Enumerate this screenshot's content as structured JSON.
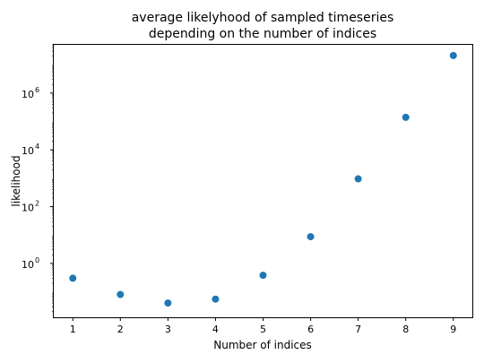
{
  "chart_data": {
    "type": "scatter",
    "title": [
      "average likelyhood of sampled timeseries",
      "depending on the number of indices"
    ],
    "xlabel": "Number of indices",
    "ylabel": "likelihood",
    "x": [
      1,
      2,
      3,
      4,
      5,
      6,
      7,
      8,
      9
    ],
    "y": [
      0.3,
      0.08,
      0.04,
      0.055,
      0.38,
      8.7,
      950,
      140000,
      21000000
    ],
    "xticks": [
      "1",
      "2",
      "3",
      "4",
      "5",
      "6",
      "7",
      "8",
      "9"
    ],
    "yscale": "log",
    "ytick_exponents": [
      0,
      2,
      4,
      6
    ],
    "ytick_labels": [
      {
        "base": "10",
        "exp": "0"
      },
      {
        "base": "10",
        "exp": "2"
      },
      {
        "base": "10",
        "exp": "4"
      },
      {
        "base": "10",
        "exp": "6"
      }
    ],
    "xlim": [
      0.6,
      9.4
    ],
    "ylim_log10": [
      -1.9,
      7.7
    ],
    "grid": false,
    "colors": {
      "marker": "#1f77b4",
      "axes": "#000000"
    }
  }
}
